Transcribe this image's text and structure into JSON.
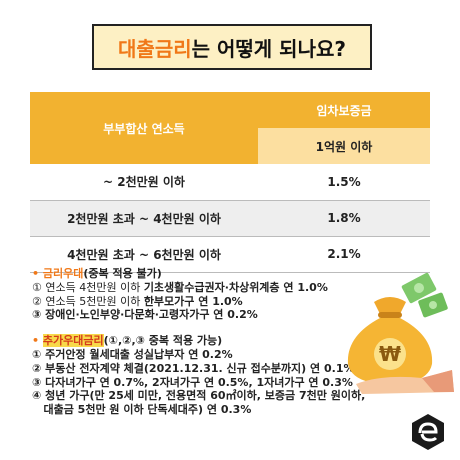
{
  "title": {
    "accent": "대출금리",
    "rest": "는 어떻게 되나요?"
  },
  "table": {
    "col_left_header": "부부합산 연소득",
    "col_right_header": "임차보증금",
    "col_right_sub": "1억원 이하",
    "rows": [
      {
        "income": "~ 2천만원 이하",
        "rate": "1.5%"
      },
      {
        "income": "2천만원 초과 ~ 4천만원 이하",
        "rate": "1.8%"
      },
      {
        "income": "4천만원 초과 ~ 6천만원 이하",
        "rate": "2.1%"
      }
    ]
  },
  "section1": {
    "bullet": "•",
    "title": "금리우대",
    "title_suffix": "(중복 적용 불가)",
    "items": [
      {
        "prefix": "① 연소득 4천만원 이하 ",
        "bold": "기초생활수급권자·차상위계층 연 1.0%"
      },
      {
        "prefix": "② 연소득 5천만원 이하 ",
        "bold": "한부모가구 연 1.0%"
      },
      {
        "prefix": "",
        "bold": "③ 장애인·노인부양·다문화·고령자가구 연 0.2%"
      }
    ]
  },
  "section2": {
    "bullet": "•",
    "title": "추가우대금리",
    "title_suffix": "(①,②,③ 중복 적용 가능)",
    "items": [
      "① 주거안정 월세대출 성실납부자 연 0.2%",
      "② 부동산 전자계약 체결(2021.12.31. 신규 접수분까지) 연 0.1%",
      "③ 다자녀가구 연 0.7%, 2자녀가구 연 0.5%, 1자녀가구 연 0.3%",
      "④ 청년 가구(만 25세 미만, 전용면적 60㎡이하, 보증금 7천만 원이하,",
      "   대출금 5천만 원 이하 단독세대주) 연 0.3%"
    ]
  },
  "illustration": {
    "icon": "money-bag-icon",
    "symbol": "₩"
  },
  "colors": {
    "accent": "#f07818",
    "header": "#f2b230",
    "subheader": "#fcdfa0",
    "title_bg": "#fdf0c4"
  }
}
